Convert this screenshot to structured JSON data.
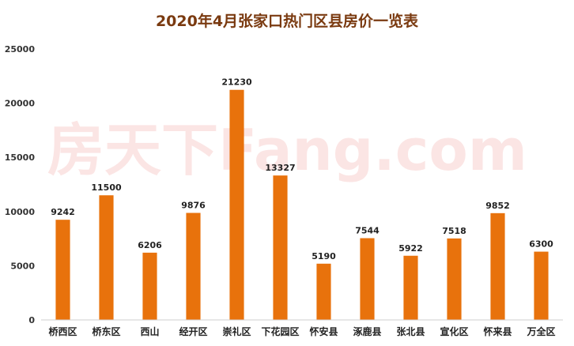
{
  "chart_data": {
    "type": "bar",
    "title": "2020年4月张家口热门区县房价一览表",
    "watermark": "房天下Fang.com",
    "categories": [
      "桥西区",
      "桥东区",
      "西山",
      "经开区",
      "崇礼区",
      "下花园区",
      "怀安县",
      "涿鹿县",
      "张北县",
      "宣化区",
      "怀来县",
      "万全区"
    ],
    "values": [
      9242,
      11500,
      6206,
      9876,
      21230,
      13327,
      5190,
      7544,
      5922,
      7518,
      9852,
      6300
    ],
    "ylim": [
      0,
      25000
    ],
    "yticks": [
      0,
      5000,
      10000,
      15000,
      20000,
      25000
    ],
    "xlabel": "",
    "ylabel": "",
    "grid": false,
    "legend": "none",
    "colors": {
      "bar": "#E8720C",
      "title": "#7A3A10",
      "watermark": "#E0302A"
    }
  }
}
